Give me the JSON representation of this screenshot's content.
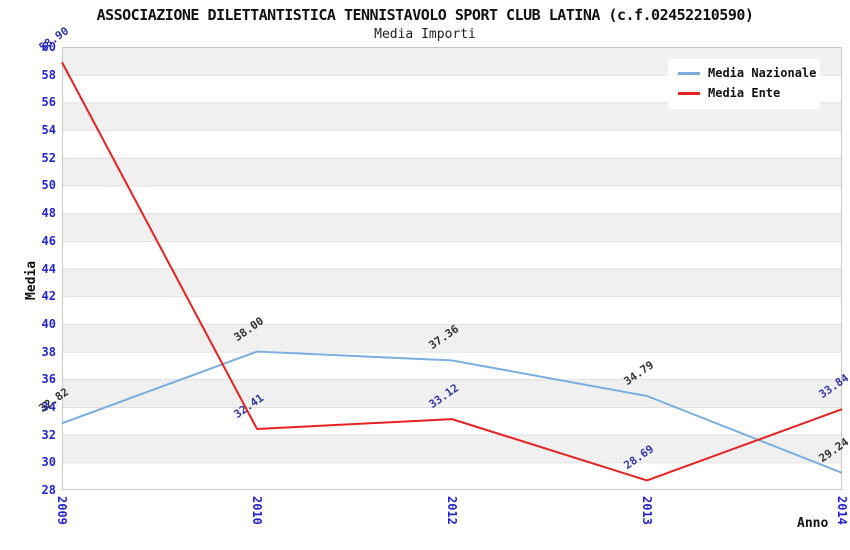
{
  "chart_data": {
    "type": "line",
    "title": "ASSOCIAZIONE DILETTANTISTICA TENNISTAVOLO SPORT CLUB LATINA (c.f.02452210590)",
    "subtitle": "Media Importi",
    "xlabel": "Anno",
    "ylabel": "Media",
    "categories": [
      "2009",
      "2010",
      "2012",
      "2013",
      "2014"
    ],
    "ylim": [
      28,
      60
    ],
    "ytick_step": 2,
    "grid": "horizontal gridlines with alternating shaded bands",
    "legend_position": "top-right",
    "series": [
      {
        "name": "Media Nazionale",
        "color": "#79aede",
        "label_color": "#333333",
        "values": [
          32.82,
          38.0,
          37.36,
          34.79,
          29.24
        ],
        "value_labels": [
          "32.82",
          "38.00",
          "37.36",
          "34.79",
          "29.24"
        ]
      },
      {
        "name": "Media Ente",
        "color": "#e62222",
        "label_color": "#3434a4",
        "values": [
          58.9,
          32.41,
          33.12,
          28.69,
          33.84
        ],
        "value_labels": [
          "58.90",
          "32.41",
          "33.12",
          "28.69",
          "33.84"
        ]
      }
    ],
    "colors": {
      "tick_label": "#2424cc",
      "band": "#f0f0f0",
      "grid": "#e0e0e0",
      "border": "#c8c8c8",
      "background": "#ffffff"
    }
  }
}
